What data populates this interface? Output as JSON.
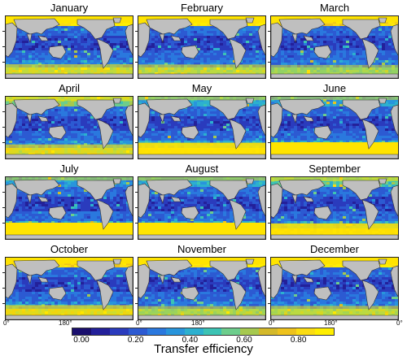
{
  "figure": {
    "months": [
      "January",
      "February",
      "March",
      "April",
      "May",
      "June",
      "July",
      "August",
      "September",
      "October",
      "November",
      "December"
    ],
    "longitude_labels": {
      "left": "0°",
      "center": "180°",
      "right": "0°"
    },
    "colorbar": {
      "label": "Transfer efficiency",
      "ticks": [
        "0.00",
        "0.20",
        "0.40",
        "0.60",
        "0.80"
      ],
      "range": [
        0.0,
        0.9
      ],
      "colors": [
        "#1a0f6e",
        "#23209a",
        "#2a3bbd",
        "#2c5ad2",
        "#2a78de",
        "#2895dc",
        "#2cb0cf",
        "#3cc3b4",
        "#6dcd8c",
        "#a6c94f",
        "#d4b92a",
        "#eec21c",
        "#fbdc12",
        "#ffee00"
      ]
    },
    "land_color": "#bfbfbf",
    "high_color": "#ffe400"
  }
}
